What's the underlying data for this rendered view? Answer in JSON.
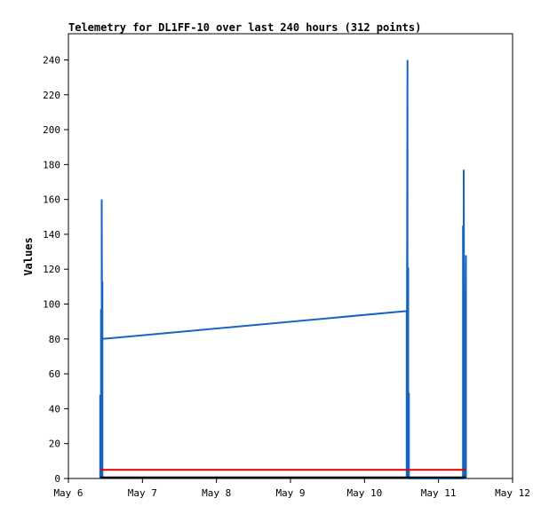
{
  "chart_data": {
    "type": "line",
    "title": "Telemetry for DL1FF-10 over last 240 hours (312 points)",
    "ylabel": "Values",
    "xlabel": "",
    "x_ticks": [
      "May 6",
      "May 7",
      "May 8",
      "May 9",
      "May 10",
      "May 11",
      "May 12"
    ],
    "y_ticks": [
      0,
      20,
      40,
      60,
      80,
      100,
      120,
      140,
      160,
      180,
      200,
      220,
      240
    ],
    "xlim": [
      0,
      6
    ],
    "ylim": [
      0,
      255
    ],
    "grid": false,
    "colors": {
      "series_blue": "#1565c0",
      "series_red": "#e00000",
      "series_black": "#000000",
      "axis": "#000000"
    },
    "series": [
      {
        "color": "#1565c0",
        "points": [
          [
            0.43,
            0
          ],
          [
            0.43,
            48
          ],
          [
            0.44,
            0
          ],
          [
            0.44,
            97
          ],
          [
            0.45,
            0
          ],
          [
            0.45,
            160
          ],
          [
            0.46,
            0
          ],
          [
            0.46,
            113
          ],
          [
            0.46,
            80
          ],
          [
            4.57,
            96
          ],
          [
            4.57,
            0
          ],
          [
            4.58,
            240
          ],
          [
            4.58,
            0
          ],
          [
            4.59,
            121
          ],
          [
            4.59,
            0
          ],
          [
            4.6,
            49
          ],
          [
            4.6,
            0
          ],
          [
            5.33,
            0
          ],
          [
            5.33,
            145
          ],
          [
            5.34,
            0
          ],
          [
            5.34,
            177
          ],
          [
            5.35,
            0
          ],
          [
            5.35,
            80
          ],
          [
            5.36,
            0
          ],
          [
            5.37,
            128
          ],
          [
            5.37,
            0
          ]
        ]
      },
      {
        "color": "#e00000",
        "points": [
          [
            0.43,
            5
          ],
          [
            5.37,
            5
          ]
        ]
      },
      {
        "color": "#000000",
        "points": [
          [
            0.43,
            0.6
          ],
          [
            5.37,
            0.6
          ]
        ]
      }
    ]
  }
}
